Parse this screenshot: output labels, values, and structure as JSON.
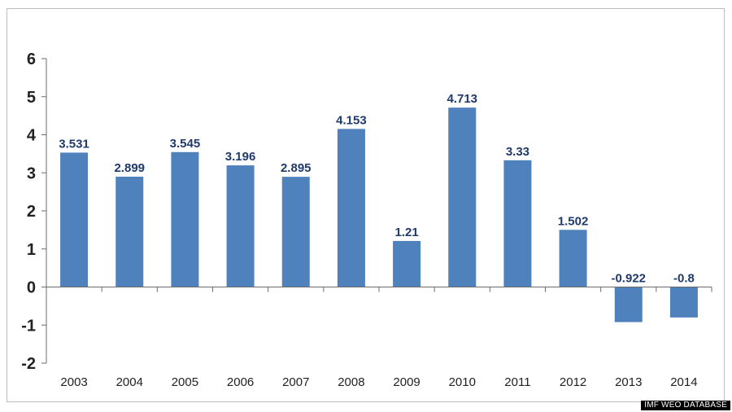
{
  "chart_data": {
    "type": "bar",
    "categories": [
      "2003",
      "2004",
      "2005",
      "2006",
      "2007",
      "2008",
      "2009",
      "2010",
      "2011",
      "2012",
      "2013",
      "2014"
    ],
    "values": [
      3.531,
      2.899,
      3.545,
      3.196,
      2.895,
      4.153,
      1.21,
      4.713,
      3.33,
      1.502,
      -0.922,
      -0.8
    ],
    "data_labels": [
      "3.531",
      "2.899",
      "3.545",
      "3.196",
      "2.895",
      "4.153",
      "1.21",
      "4.713",
      "3.33",
      "1.502",
      "-0.922",
      "-0.8"
    ],
    "yticks": [
      6,
      5,
      4,
      3,
      2,
      1,
      0,
      -1,
      -2
    ],
    "ylim": [
      -2,
      6
    ],
    "title": "",
    "xlabel": "",
    "ylabel": "",
    "grid": false,
    "legend": "none",
    "bar_color": "#4f81bd"
  },
  "source": "IMF WEO DATABASE"
}
